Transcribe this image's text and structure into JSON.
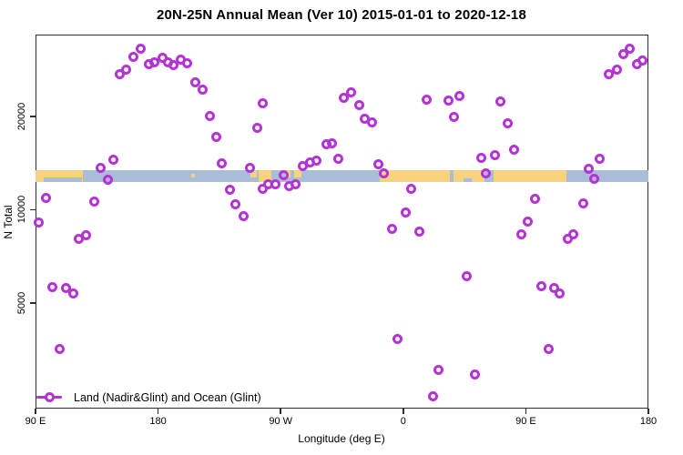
{
  "title": "20N-25N Annual Mean (Ver 10)   2015-01-01 to 2020-12-18",
  "colors": {
    "marker": "#b432d7",
    "land": "#f9d27d",
    "ocean": "#a9bdd8",
    "axis": "#2e2e2e",
    "text": "#000000",
    "background": "#ffffff"
  },
  "chart_data": {
    "type": "scatter",
    "title": "20N-25N Annual Mean (Ver 10)   2015-01-01 to 2020-12-18",
    "xlabel": "Longitude (deg E)",
    "ylabel": "N Total",
    "grid": false,
    "x_axis": {
      "lim": [
        90,
        540
      ],
      "note": "longitude axis wraps eastward: 90E to 180 to 90W to 0 to 90E to 180; positions >360 repeat 0-180E",
      "ticks": [
        {
          "pos": 90,
          "label": "90 E"
        },
        {
          "pos": 180,
          "label": "180"
        },
        {
          "pos": 270,
          "label": "90 W"
        },
        {
          "pos": 360,
          "label": "0"
        },
        {
          "pos": 450,
          "label": "90 E"
        },
        {
          "pos": 540,
          "label": "180"
        }
      ]
    },
    "y_axis": {
      "scale": "log",
      "lim": [
        2280,
        36700
      ],
      "ticks": [
        {
          "value": 5000,
          "label": "5000"
        },
        {
          "value": 10000,
          "label": "10000"
        },
        {
          "value": 20000,
          "label": "20000"
        }
      ]
    },
    "legend": {
      "label": "Land (Nadir&Glint) and Ocean (Glint)",
      "marker": "open-circle-on-line",
      "position": "bottom-left-inside"
    },
    "map_band": {
      "description": "thin 20N-25N latitude world-map strip overlaid across plot",
      "v_top": 13400,
      "v_bottom": 12270,
      "land_segments": [
        {
          "from": 90,
          "to": 124.5,
          "coverage": "full"
        },
        {
          "from": 204.5,
          "to": 207,
          "coverage": "islet"
        },
        {
          "from": 248,
          "to": 252.5,
          "coverage": "upper"
        },
        {
          "from": 254,
          "to": 263,
          "coverage": "full"
        },
        {
          "from": 273,
          "to": 277,
          "coverage": "upper"
        },
        {
          "from": 280,
          "to": 285,
          "coverage": "upper"
        },
        {
          "from": 343,
          "to": 394.5,
          "coverage": "full"
        },
        {
          "from": 397,
          "to": 419.5,
          "coverage": "full"
        },
        {
          "from": 426,
          "to": 480,
          "coverage": "full"
        }
      ],
      "ocean_overlays": [
        {
          "from": 96,
          "to": 124,
          "h_frac": 0.42
        },
        {
          "from": 404,
          "to": 410,
          "h_frac": 0.33
        }
      ]
    },
    "series": [
      {
        "name": "Land (Nadir&Glint) and Ocean (Glint)",
        "marker": "open-circle",
        "points": [
          [
            92.5,
            9100
          ],
          [
            98,
            10900
          ],
          [
            102.5,
            5610
          ],
          [
            107.5,
            3560
          ],
          [
            112.5,
            5590
          ],
          [
            117.5,
            5380
          ],
          [
            122,
            8070
          ],
          [
            127,
            8240
          ],
          [
            133,
            10600
          ],
          [
            137.5,
            13600
          ],
          [
            143,
            12450
          ],
          [
            147.5,
            14450
          ],
          [
            152,
            27300
          ],
          [
            156.5,
            28300
          ],
          [
            162,
            31000
          ],
          [
            167.5,
            33000
          ],
          [
            173,
            29400
          ],
          [
            177.5,
            29800
          ],
          [
            183,
            30900
          ],
          [
            187.5,
            29800
          ],
          [
            191.5,
            29200
          ],
          [
            196.5,
            30400
          ],
          [
            201,
            29600
          ],
          [
            207.5,
            25700
          ],
          [
            212.5,
            24300
          ],
          [
            218,
            20100
          ],
          [
            222.5,
            17200
          ],
          [
            227,
            14100
          ],
          [
            233,
            11600
          ],
          [
            237,
            10400
          ],
          [
            242.5,
            9500
          ],
          [
            247.5,
            13650
          ],
          [
            252.5,
            18300
          ],
          [
            256.5,
            11700
          ],
          [
            257,
            22100
          ],
          [
            261,
            12100
          ],
          [
            266.5,
            12100
          ],
          [
            272.5,
            12900
          ],
          [
            276.5,
            11900
          ],
          [
            281,
            12100
          ],
          [
            286.5,
            13800
          ],
          [
            291.5,
            14200
          ],
          [
            296,
            14350
          ],
          [
            303.5,
            16300
          ],
          [
            307.5,
            16400
          ],
          [
            312,
            14550
          ],
          [
            316.5,
            22900
          ],
          [
            321.5,
            23900
          ],
          [
            327.5,
            21700
          ],
          [
            332,
            19600
          ],
          [
            337,
            19100
          ],
          [
            342,
            13970
          ],
          [
            346,
            13060
          ],
          [
            352,
            8650
          ],
          [
            356,
            3820
          ],
          [
            362,
            9770
          ],
          [
            366,
            11650
          ],
          [
            372,
            8470
          ],
          [
            377.5,
            22600
          ],
          [
            382,
            2490
          ],
          [
            386,
            3030
          ],
          [
            393,
            22500
          ],
          [
            397,
            19900
          ],
          [
            401,
            23200
          ],
          [
            406.5,
            6080
          ],
          [
            412.5,
            2930
          ],
          [
            417,
            14650
          ],
          [
            420.5,
            13050
          ],
          [
            427.5,
            14950
          ],
          [
            431.5,
            22400
          ],
          [
            436.5,
            19000
          ],
          [
            441.5,
            15600
          ],
          [
            447,
            8300
          ],
          [
            451.5,
            9120
          ],
          [
            456.5,
            10800
          ],
          [
            461.5,
            5650
          ],
          [
            466.5,
            3560
          ],
          [
            471,
            5590
          ],
          [
            475,
            5380
          ],
          [
            481,
            8070
          ],
          [
            485,
            8300
          ],
          [
            492,
            10500
          ],
          [
            496.5,
            13500
          ],
          [
            500.5,
            12530
          ],
          [
            504.5,
            14550
          ],
          [
            511,
            27400
          ],
          [
            517,
            28300
          ],
          [
            521.5,
            31800
          ],
          [
            526,
            33000
          ],
          [
            531.5,
            29400
          ],
          [
            535.5,
            30200
          ]
        ]
      }
    ]
  }
}
